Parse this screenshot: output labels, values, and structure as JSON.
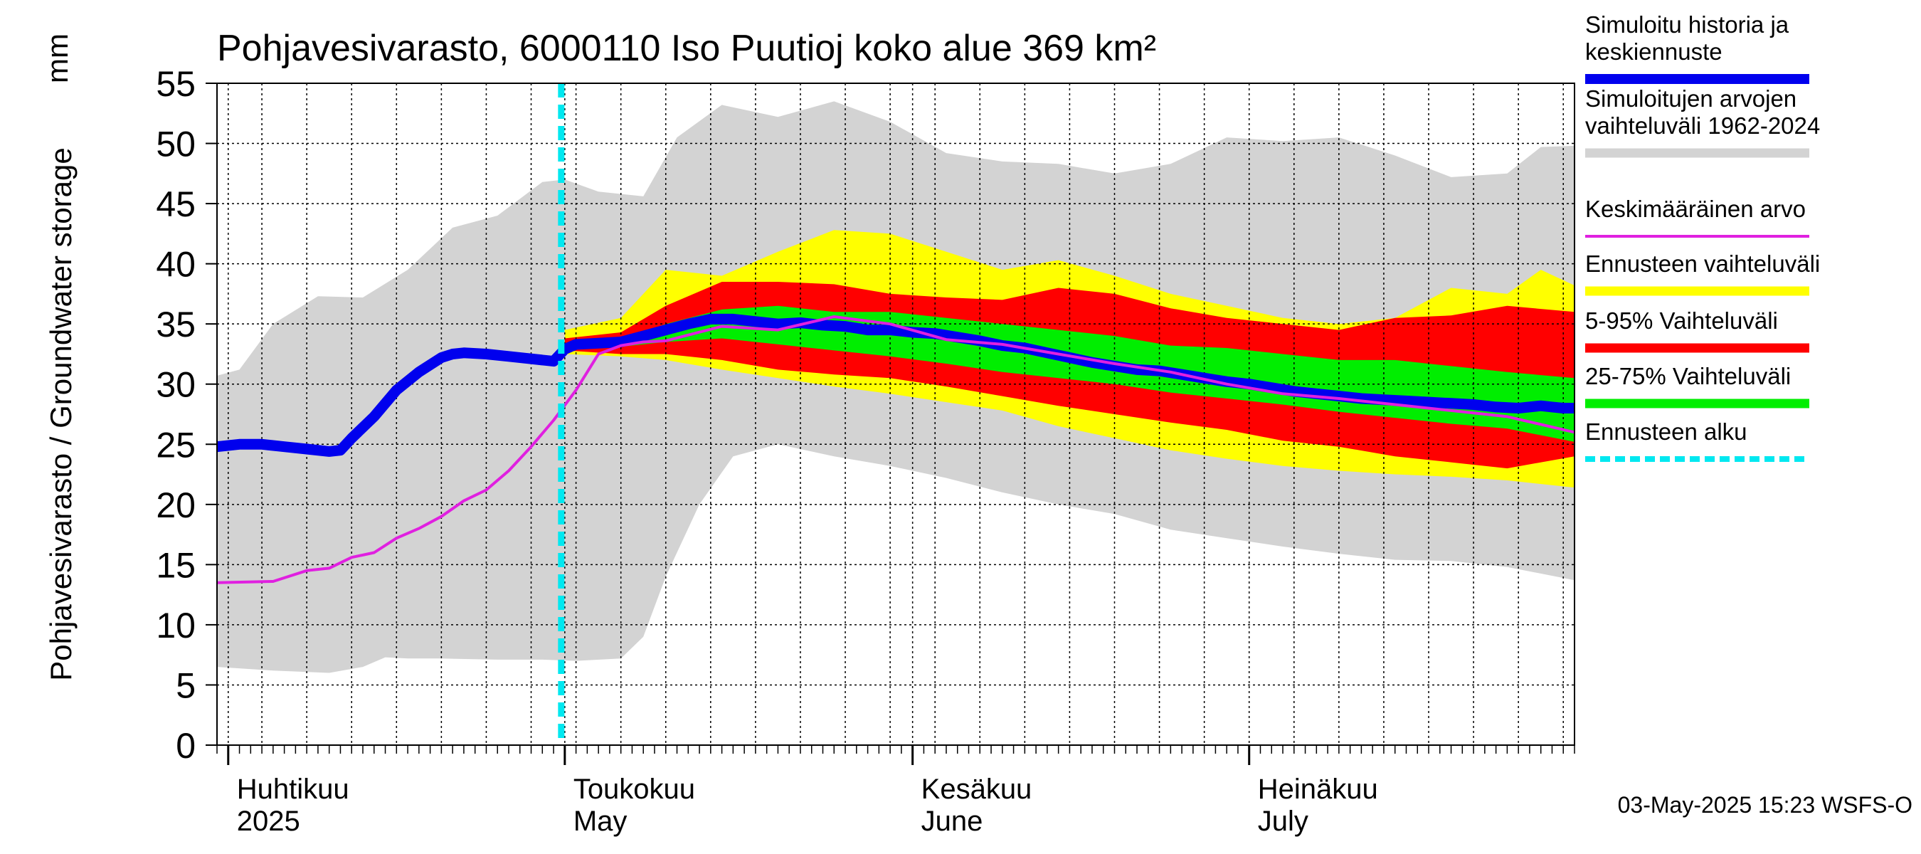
{
  "chart_data": {
    "type": "area",
    "title": "Pohjavesivarasto, 6000110 Iso Puutioj koko alue 369 km²",
    "ylabel": "Pohjavesivarasto / Groundwater storage",
    "yunit": "mm",
    "ylim": [
      0,
      55
    ],
    "yticks": [
      0,
      5,
      10,
      15,
      20,
      25,
      30,
      35,
      40,
      45,
      50,
      55
    ],
    "x_axis": {
      "unit": "day of year 2025",
      "range": [
        90,
        211
      ],
      "month_starts": [
        91,
        121,
        152,
        182
      ],
      "month_labels": [
        {
          "fi": "Huhtikuu",
          "en": "2025",
          "day": 91
        },
        {
          "fi": "Toukokuu",
          "en": "May",
          "day": 121
        },
        {
          "fi": "Kesäkuu",
          "en": "June",
          "day": 152
        },
        {
          "fi": "Heinäkuu",
          "en": "July",
          "day": 182
        }
      ]
    },
    "forecast_start_day": 121,
    "timestamp": "03-May-2025 15:23 WSFS-O",
    "colors": {
      "simulated": "#0000ee",
      "range_hist": "#d3d3d3",
      "mean": "#e020e0",
      "forecast_range": "#ffff00",
      "p5_95": "#ff0000",
      "p25_75": "#00ee00",
      "forecast_start": "#00e8f0"
    },
    "legend": [
      {
        "key": "simulated",
        "lines": [
          "Simuloitu historia ja",
          "keskiennuste"
        ]
      },
      {
        "key": "range_hist",
        "lines": [
          "Simuloitujen arvojen",
          "vaihteluväli 1962-2024"
        ]
      },
      {
        "key": "mean",
        "lines": [
          "Keskimääräinen arvo"
        ]
      },
      {
        "key": "forecast_range",
        "lines": [
          "Ennusteen vaihteluväli"
        ]
      },
      {
        "key": "p5_95",
        "lines": [
          "5-95% Vaihteluväli"
        ]
      },
      {
        "key": "p25_75",
        "lines": [
          "25-75% Vaihteluväli"
        ]
      },
      {
        "key": "forecast_start",
        "lines": [
          "Ennusteen alku"
        ]
      }
    ],
    "series": {
      "hist_range_upper": {
        "x": [
          90,
          92,
          95,
          99,
          103,
          107,
          111,
          115,
          119,
          121,
          124,
          128,
          131,
          135,
          140,
          145,
          150,
          155,
          160,
          165,
          170,
          175,
          180,
          185,
          190,
          195,
          200,
          205,
          208,
          211
        ],
        "y": [
          30.7,
          31.2,
          35,
          37.3,
          37.2,
          39.5,
          43,
          44,
          46.8,
          47,
          46,
          45.6,
          50.5,
          53.2,
          52.2,
          53.5,
          51.8,
          49.2,
          48.5,
          48.3,
          47.5,
          48.3,
          50.5,
          50.2,
          50.5,
          49,
          47.2,
          47.5,
          49.7,
          49.8
        ]
      },
      "hist_range_lower": {
        "x": [
          90,
          95,
          100,
          103,
          105,
          107,
          110,
          115,
          119,
          122,
          126,
          128,
          130,
          133,
          136,
          140,
          145,
          150,
          155,
          160,
          165,
          170,
          175,
          180,
          185,
          190,
          195,
          200,
          205,
          211
        ],
        "y": [
          6.5,
          6.2,
          6,
          6.5,
          7.3,
          7.2,
          7.2,
          7.1,
          7.1,
          7.0,
          7.2,
          9,
          14,
          20,
          24,
          25,
          24,
          23.2,
          22.2,
          21,
          20,
          19.2,
          17.9,
          17.2,
          16.5,
          15.9,
          15.4,
          15.3,
          14.8,
          13.7
        ]
      },
      "forecast_upper": {
        "x": [
          121,
          126,
          130,
          135,
          140,
          145,
          150,
          155,
          160,
          165,
          170,
          175,
          180,
          185,
          190,
          195,
          200,
          205,
          208,
          211
        ],
        "y": [
          34.5,
          35.5,
          39.5,
          39,
          41,
          42.8,
          42.5,
          41,
          39.5,
          40.3,
          39,
          37.5,
          36.5,
          35.5,
          35,
          35.5,
          38,
          37.5,
          39.5,
          38.2
        ]
      },
      "forecast_lower": {
        "x": [
          121,
          126,
          130,
          135,
          140,
          145,
          150,
          155,
          160,
          165,
          170,
          175,
          180,
          185,
          190,
          195,
          200,
          205,
          211
        ],
        "y": [
          32.5,
          32.3,
          32,
          31.2,
          30.5,
          29.8,
          29.2,
          28.5,
          27.8,
          26.5,
          25.5,
          24.5,
          23.8,
          23.2,
          22.8,
          22.5,
          22.3,
          22,
          21.4
        ]
      },
      "p95": {
        "x": [
          121,
          126,
          130,
          135,
          140,
          145,
          150,
          155,
          160,
          165,
          170,
          175,
          180,
          185,
          190,
          195,
          200,
          205,
          211
        ],
        "y": [
          33.8,
          34.3,
          36.5,
          38.5,
          38.5,
          38.3,
          37.5,
          37.2,
          37,
          38,
          37.5,
          36.3,
          35.5,
          35,
          34.5,
          35.5,
          35.7,
          36.5,
          36
        ]
      },
      "p5": {
        "x": [
          121,
          126,
          130,
          135,
          140,
          145,
          150,
          155,
          160,
          165,
          170,
          175,
          180,
          185,
          190,
          195,
          200,
          205,
          211
        ],
        "y": [
          32.8,
          32.5,
          32.5,
          32,
          31.2,
          30.8,
          30.5,
          29.8,
          29,
          28.2,
          27.5,
          26.8,
          26.2,
          25.3,
          24.8,
          24,
          23.5,
          23,
          24
        ]
      },
      "p75": {
        "x": [
          121,
          126,
          130,
          135,
          140,
          145,
          150,
          155,
          160,
          165,
          170,
          175,
          180,
          185,
          190,
          195,
          200,
          205,
          211
        ],
        "y": [
          33.4,
          33.6,
          35,
          36.2,
          36.5,
          36,
          36,
          35.5,
          35,
          34.5,
          34,
          33.2,
          33,
          32.5,
          32,
          32,
          31.5,
          31,
          30.5
        ]
      },
      "p25": {
        "x": [
          121,
          126,
          130,
          135,
          140,
          145,
          150,
          155,
          160,
          165,
          170,
          175,
          180,
          185,
          190,
          195,
          200,
          205,
          211
        ],
        "y": [
          33.2,
          33.1,
          33.5,
          33.8,
          33.3,
          32.8,
          32.3,
          31.7,
          31,
          30.5,
          30,
          29.3,
          28.8,
          28.3,
          27.7,
          27.2,
          26.7,
          26.3,
          25.2
        ]
      },
      "mean": {
        "x": [
          90,
          95,
          98,
          100,
          102,
          104,
          106,
          108,
          110,
          112,
          114,
          116,
          118,
          120,
          122,
          124,
          126,
          128,
          130,
          135,
          140,
          145,
          150,
          155,
          160,
          165,
          170,
          175,
          180,
          185,
          190,
          195,
          200,
          205,
          211
        ],
        "y": [
          13.5,
          13.6,
          14.5,
          14.7,
          15.6,
          16,
          17.2,
          18,
          19,
          20.3,
          21.2,
          22.8,
          24.8,
          27,
          29.5,
          32.5,
          33.2,
          33.5,
          33.6,
          34.8,
          34.5,
          35.6,
          35,
          33.7,
          33.3,
          32.5,
          31.7,
          31,
          30,
          29.2,
          28.8,
          28.3,
          27.8,
          27.3,
          26
        ]
      },
      "simulated": {
        "x": [
          90,
          92,
          94,
          96,
          98,
          100,
          101,
          102,
          104,
          106,
          108,
          110,
          111,
          112,
          114,
          116,
          118,
          119,
          120,
          121,
          122,
          124,
          126,
          128,
          130,
          132,
          134,
          136,
          138,
          140,
          142,
          144,
          146,
          148,
          150,
          152,
          154,
          156,
          158,
          160,
          162,
          164,
          166,
          168,
          170,
          172,
          174,
          176,
          178,
          180,
          182,
          184,
          186,
          188,
          190,
          192,
          194,
          196,
          198,
          200,
          202,
          204,
          206,
          208,
          209,
          210,
          211
        ],
        "y": [
          24.8,
          25,
          25,
          24.8,
          24.6,
          24.4,
          24.5,
          25.5,
          27.3,
          29.5,
          31,
          32.2,
          32.5,
          32.6,
          32.5,
          32.3,
          32.1,
          32,
          31.9,
          32.9,
          33.3,
          33.4,
          33.5,
          34,
          34.5,
          35,
          35.4,
          35.4,
          35.2,
          35,
          35.1,
          34.9,
          34.8,
          34.5,
          34.5,
          34.3,
          34.2,
          33.9,
          33.6,
          33.2,
          33,
          32.6,
          32.2,
          31.8,
          31.5,
          31.2,
          31.1,
          30.8,
          30.5,
          30.2,
          30,
          29.7,
          29.4,
          29.2,
          29,
          28.8,
          28.7,
          28.6,
          28.5,
          28.4,
          28.3,
          28.1,
          28,
          28.2,
          28.1,
          28,
          28
        ]
      }
    }
  }
}
